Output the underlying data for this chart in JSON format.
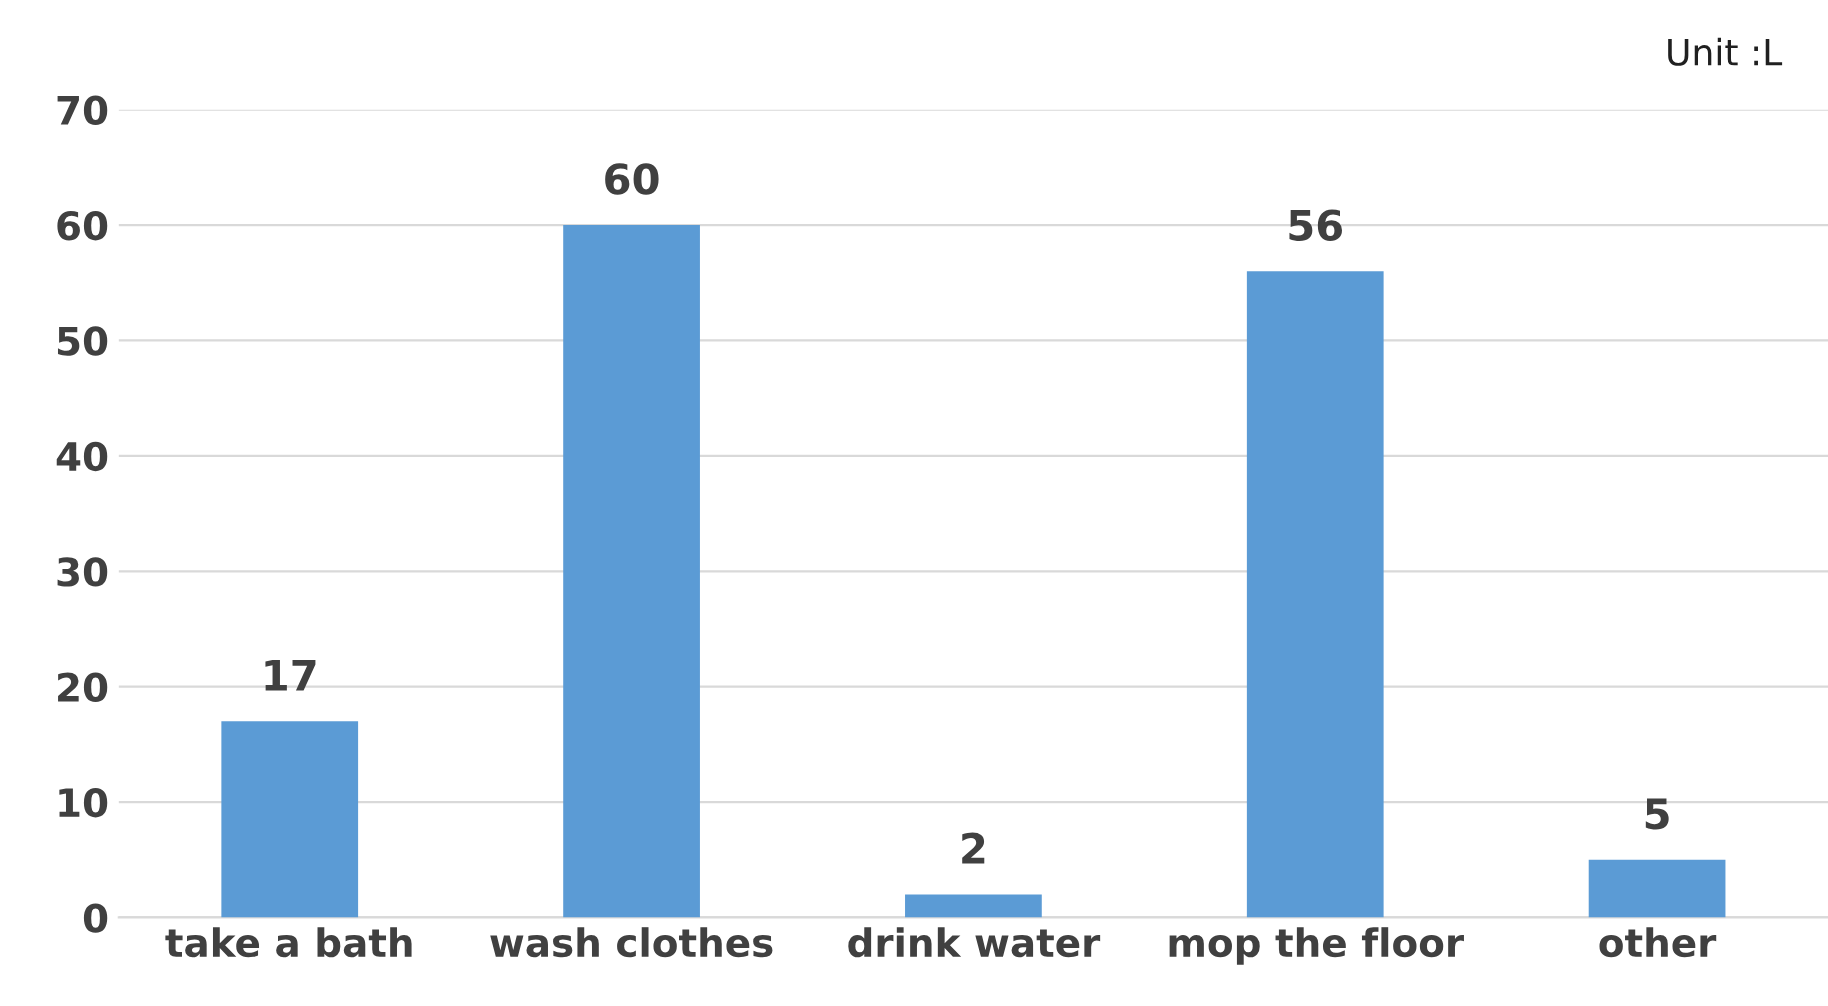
{
  "chart_data": {
    "type": "bar",
    "annotations": [
      "Unit :L"
    ],
    "categories": [
      "take a bath",
      "wash clothes",
      "drink water",
      "mop the floor",
      "other"
    ],
    "values": [
      17,
      60,
      2,
      56,
      5
    ],
    "color": "#5b9bd5",
    "data_labels": true,
    "ylim": [
      0,
      70
    ],
    "yticks": [
      0,
      10,
      20,
      30,
      40,
      50,
      60,
      70
    ],
    "grid": "y",
    "legend": false
  }
}
